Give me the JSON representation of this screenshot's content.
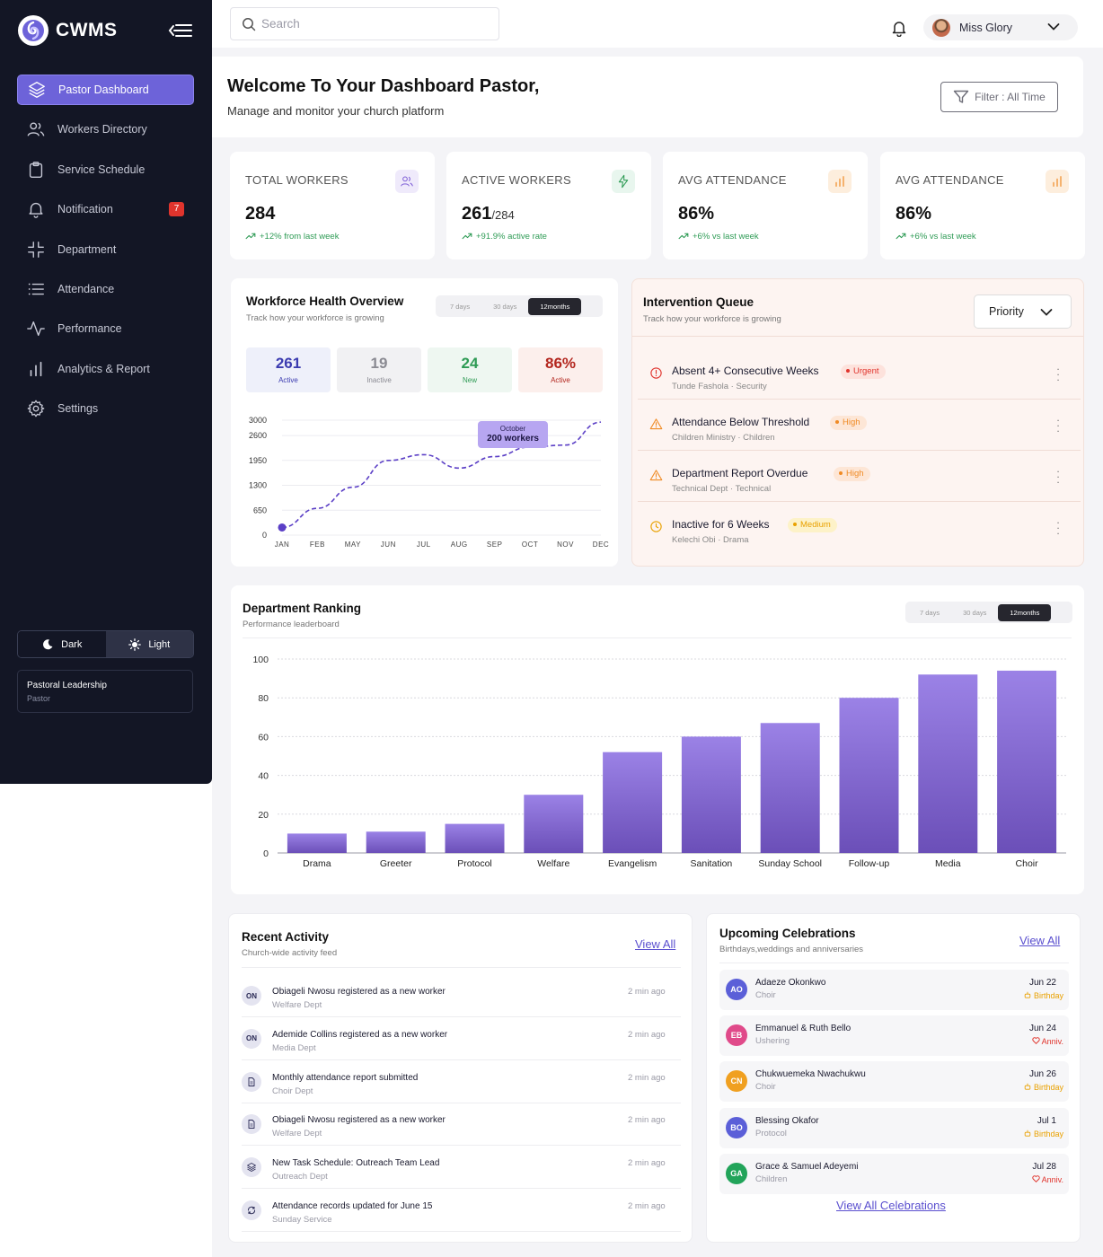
{
  "app": {
    "name": "CWMS"
  },
  "sidebar": {
    "items": [
      {
        "label": "Pastor Dashboard",
        "icon": "layers-icon",
        "active": true
      },
      {
        "label": "Workers Directory",
        "icon": "users-icon"
      },
      {
        "label": "Service Schedule",
        "icon": "clipboard-icon"
      },
      {
        "label": "Notification",
        "icon": "bell-icon",
        "badge": "7"
      },
      {
        "label": "Department",
        "icon": "shrink-icon"
      },
      {
        "label": "Attendance",
        "icon": "list-icon"
      },
      {
        "label": "Performance",
        "icon": "activity-icon"
      },
      {
        "label": "Analytics & Report",
        "icon": "bar-chart-icon"
      },
      {
        "label": "Settings",
        "icon": "gear-icon"
      }
    ],
    "theme": {
      "dark": "Dark",
      "light": "Light"
    },
    "role": {
      "title": "Pastoral Leadership",
      "subtitle": "Pastor"
    }
  },
  "topbar": {
    "search_placeholder": "Search",
    "user_name": "Miss Glory"
  },
  "welcome": {
    "title": "Welcome To Your Dashboard Pastor,",
    "subtitle": "Manage and monitor your church platform",
    "filter": "Filter : All Time"
  },
  "stats": [
    {
      "title": "TOTAL WORKERS",
      "value": "284",
      "suffix": "",
      "trend": "+12% from last week",
      "icon": "users-icon",
      "color": "#7c5cd6"
    },
    {
      "title": "ACTIVE WORKERS",
      "value": "261",
      "suffix": "/284",
      "trend": "+91.9% active rate",
      "icon": "bolt-icon",
      "color": "#2e9b55"
    },
    {
      "title": "AVG ATTENDANCE",
      "value": "86%",
      "suffix": "",
      "trend": "+6% vs last week",
      "icon": "bar-chart-icon",
      "color": "#f08a24"
    },
    {
      "title": "AVG ATTENDANCE",
      "value": "86%",
      "suffix": "",
      "trend": "+6% vs last week",
      "icon": "bar-chart-icon",
      "color": "#f08a24"
    }
  ],
  "workforce": {
    "title": "Workforce Health Overview",
    "subtitle": "Track how your workforce is growing",
    "tabs": [
      "7 days",
      "30 days",
      "12months"
    ],
    "mini": [
      {
        "value": "261",
        "label": "Active",
        "color": "#3b3bb0",
        "bg": "#eef0fa"
      },
      {
        "value": "19",
        "label": "Inactive",
        "color": "#8a8a92",
        "bg": "#f1f1f3"
      },
      {
        "value": "24",
        "label": "New",
        "color": "#2e9b55",
        "bg": "#eef7f1"
      },
      {
        "value": "86%",
        "label": "Active",
        "color": "#b3261e",
        "bg": "#fcefec"
      }
    ],
    "tooltip": {
      "month": "October",
      "value": "200 workers"
    }
  },
  "queue": {
    "title": "Intervention Queue",
    "subtitle": "Track how your workforce is growing",
    "sort": "Priority",
    "items": [
      {
        "title": "Absent 4+ Consecutive Weeks",
        "sub": "Tunde Fashola · Security",
        "badge": "Urgent",
        "icon": "alert-circle-icon",
        "color": "#e0342d",
        "bg": "#fde2dc"
      },
      {
        "title": "Attendance Below Threshold",
        "sub": "Children Ministry · Children",
        "badge": "High",
        "icon": "warning-icon",
        "color": "#f08a24",
        "bg": "#fde6d6"
      },
      {
        "title": "Department Report Overdue",
        "sub": "Technical Dept · Technical",
        "badge": "High",
        "icon": "warning-icon",
        "color": "#f08a24",
        "bg": "#fde6d6"
      },
      {
        "title": "Inactive for 6 Weeks",
        "sub": "Kelechi Obi · Drama",
        "badge": "Medium",
        "icon": "clock-icon",
        "color": "#e9a100",
        "bg": "#fdf2c8"
      }
    ]
  },
  "ranking": {
    "title": "Department Ranking",
    "subtitle": "Performance leaderboard",
    "tabs": [
      "7 days",
      "30 days",
      "12months"
    ]
  },
  "chart_data": [
    {
      "type": "line",
      "x": [
        "JAN",
        "FEB",
        "MAY",
        "JUN",
        "JUL",
        "AUG",
        "SEP",
        "OCT",
        "NOV",
        "DEC"
      ],
      "values": [
        200,
        700,
        1250,
        1950,
        2100,
        1750,
        2050,
        2300,
        2350,
        2950
      ],
      "yticks": [
        0,
        650,
        1300,
        1950,
        2600,
        3000
      ],
      "ylim": [
        0,
        3000
      ]
    },
    {
      "type": "bar",
      "categories": [
        "Drama",
        "Greeter",
        "Protocol",
        "Welfare",
        "Evangelism",
        "Sanitation",
        "Sunday School",
        "Follow-up",
        "Media",
        "Choir"
      ],
      "values": [
        10,
        11,
        15,
        30,
        52,
        60,
        67,
        80,
        92,
        94
      ],
      "yticks": [
        0,
        20,
        40,
        60,
        80,
        100
      ],
      "ylim": [
        0,
        100
      ]
    }
  ],
  "activity": {
    "title": "Recent Activity",
    "subtitle": "Church-wide activity feed",
    "view_all": "View All",
    "items": [
      {
        "avatar": "ON",
        "title": "Obiageli Nwosu registered as a new worker",
        "sub": "Welfare Dept",
        "time": "2 min ago"
      },
      {
        "avatar": "ON",
        "title": "Ademide Collins registered as a new worker",
        "sub": "Media Dept",
        "time": "2 min ago"
      },
      {
        "avatar": "",
        "icon": "document-icon",
        "title": "Monthly attendance report submitted",
        "sub": "Choir Dept",
        "time": "2 min ago"
      },
      {
        "avatar": "",
        "icon": "document-icon",
        "title": "Obiageli Nwosu registered as a new worker",
        "sub": "Welfare Dept",
        "time": "2 min ago"
      },
      {
        "avatar": "",
        "icon": "layers-icon",
        "title": "New Task Schedule: Outreach Team Lead",
        "sub": "Outreach Dept",
        "time": "2 min ago"
      },
      {
        "avatar": "",
        "icon": "refresh-icon",
        "title": "Attendance records updated for June 15",
        "sub": "Sunday Service",
        "time": "2 min ago"
      }
    ]
  },
  "celebrations": {
    "title": "Upcoming Celebrations",
    "subtitle": "Birthdays,weddings and anniversaries",
    "view_all": "View All",
    "view_all_bottom": "View All Celebrations",
    "items": [
      {
        "initials": "AO",
        "name": "Adaeze Okonkwo",
        "dept": "Choir",
        "date": "Jun 22",
        "type": "Birthday",
        "avatar_color": "#5b5fd8",
        "type_color": "#e9a100"
      },
      {
        "initials": "EB",
        "name": "Emmanuel & Ruth Bello",
        "dept": "Ushering",
        "date": "Jun 24",
        "type": "Anniv.",
        "avatar_color": "#e04a8a",
        "type_color": "#e0342d"
      },
      {
        "initials": "CN",
        "name": "Chukwuemeka Nwachukwu",
        "dept": "Choir",
        "date": "Jun 26",
        "type": "Birthday",
        "avatar_color": "#f0a020",
        "type_color": "#e9a100"
      },
      {
        "initials": "BO",
        "name": "Blessing Okafor",
        "dept": "Protocol",
        "date": "Jul 1",
        "type": "Birthday",
        "avatar_color": "#5b5fd8",
        "type_color": "#e9a100"
      },
      {
        "initials": "GA",
        "name": "Grace & Samuel Adeyemi",
        "dept": "Children",
        "date": "Jul 28",
        "type": "Anniv.",
        "avatar_color": "#22a45a",
        "type_color": "#e0342d"
      }
    ]
  }
}
